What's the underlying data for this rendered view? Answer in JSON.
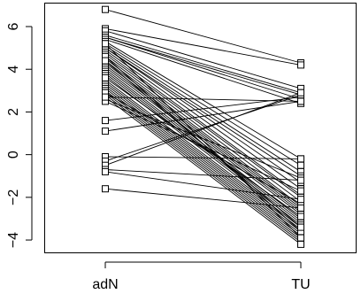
{
  "chart_data": {
    "type": "line",
    "categories": [
      "adN",
      "TU"
    ],
    "ylim": [
      -4.6,
      7.1
    ],
    "y_ticks": [
      -4,
      -2,
      0,
      2,
      4,
      6
    ],
    "y_tick_labels": [
      "−4",
      "−2",
      "0",
      "2",
      "4",
      "6"
    ],
    "x_tick_labels": [
      "adN",
      "TU"
    ],
    "grid": false,
    "legend": "none",
    "title": "",
    "xlabel": "",
    "ylabel": "",
    "pairs": [
      [
        6.8,
        4.3
      ],
      [
        5.9,
        4.2
      ],
      [
        5.8,
        3.1
      ],
      [
        5.6,
        2.9
      ],
      [
        5.5,
        2.8
      ],
      [
        5.5,
        2.6
      ],
      [
        5.4,
        2.4
      ],
      [
        5.3,
        -0.2
      ],
      [
        5.2,
        -0.5
      ],
      [
        5.1,
        -0.8
      ],
      [
        5.0,
        -1.0
      ],
      [
        5.0,
        -1.3
      ],
      [
        4.9,
        -1.6
      ],
      [
        4.8,
        -1.9
      ],
      [
        4.7,
        -2.0
      ],
      [
        4.6,
        -2.2
      ],
      [
        4.5,
        -2.4
      ],
      [
        4.4,
        -2.5
      ],
      [
        4.3,
        -2.6
      ],
      [
        4.2,
        -2.7
      ],
      [
        4.1,
        -2.8
      ],
      [
        4.0,
        -3.0
      ],
      [
        3.9,
        -3.1
      ],
      [
        3.8,
        -3.2
      ],
      [
        3.7,
        -3.3
      ],
      [
        3.5,
        -3.4
      ],
      [
        3.4,
        -3.5
      ],
      [
        3.3,
        -3.6
      ],
      [
        3.2,
        -3.7
      ],
      [
        3.1,
        -3.8
      ],
      [
        3.0,
        -3.9
      ],
      [
        2.9,
        -4.0
      ],
      [
        2.8,
        -4.1
      ],
      [
        2.7,
        -4.2
      ],
      [
        2.6,
        -1.1
      ],
      [
        2.5,
        -1.7
      ],
      [
        2.9,
        -2.3
      ],
      [
        3.6,
        -2.9
      ],
      [
        4.6,
        -3.6
      ],
      [
        5.2,
        -3.9
      ],
      [
        2.7,
        2.5
      ],
      [
        1.6,
        2.7
      ],
      [
        1.1,
        2.5
      ],
      [
        -0.1,
        -0.2
      ],
      [
        -0.3,
        2.8
      ],
      [
        -0.5,
        2.9
      ],
      [
        -0.7,
        -1.2
      ],
      [
        -0.8,
        -2.1
      ],
      [
        -1.6,
        -2.5
      ],
      [
        4.4,
        -3.4
      ]
    ]
  }
}
